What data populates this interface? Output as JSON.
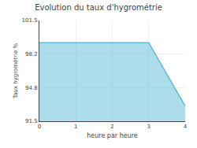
{
  "chart_data": {
    "type": "area",
    "title": "Evolution du taux d'hygrométrie",
    "xlabel": "heure par heure",
    "ylabel": "Taux hygrométrie %",
    "x": [
      0,
      3,
      4
    ],
    "values": [
      99.3,
      99.3,
      93.0
    ],
    "color": "#5bbcd6",
    "xlim": [
      0,
      4
    ],
    "xticks": [
      0,
      1,
      2,
      3,
      4
    ],
    "ylim": [
      91.5,
      101.5
    ],
    "yticks": [
      91.5,
      94.8,
      98.2,
      101.5
    ],
    "grid": true
  }
}
